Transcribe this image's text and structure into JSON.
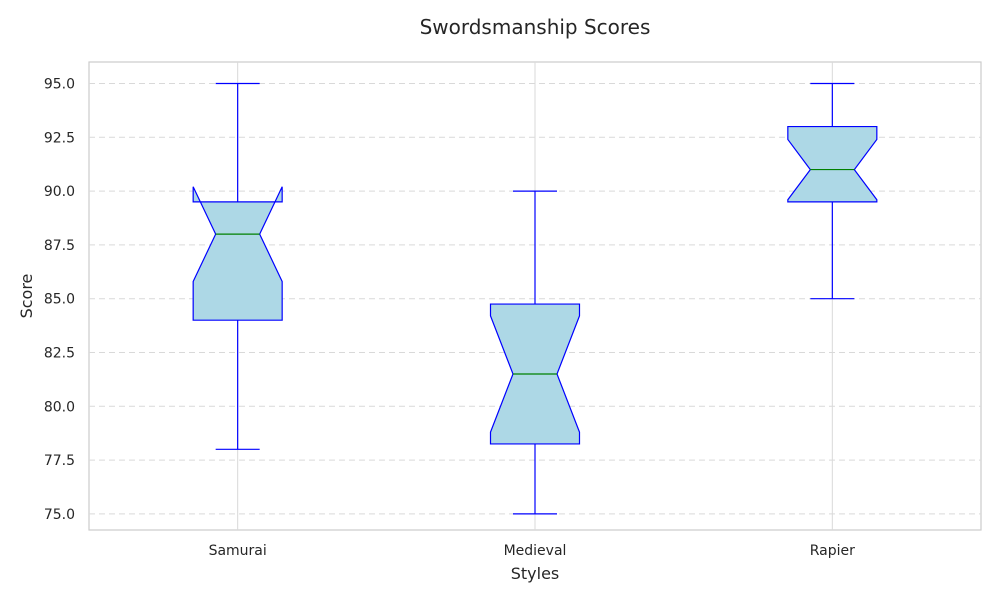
{
  "chart_data": {
    "type": "box",
    "title": "Swordsmanship Scores",
    "xlabel": "Styles",
    "ylabel": "Score",
    "ylim": [
      74.25,
      96.0
    ],
    "yticks": [
      "75.0",
      "77.5",
      "80.0",
      "82.5",
      "85.0",
      "87.5",
      "90.0",
      "92.5",
      "95.0"
    ],
    "grid": "y-dashed",
    "notched": true,
    "categories": [
      "Samurai",
      "Medieval",
      "Rapier"
    ],
    "boxes": [
      {
        "category": "Samurai",
        "whisker_low": 78.0,
        "q1": 84.0,
        "median": 88.0,
        "q3": 89.5,
        "whisker_high": 95.0,
        "notch_low": 85.8,
        "notch_high": 90.2
      },
      {
        "category": "Medieval",
        "whisker_low": 75.0,
        "q1": 78.25,
        "median": 81.5,
        "q3": 84.75,
        "whisker_high": 90.0,
        "notch_low": 78.8,
        "notch_high": 84.2
      },
      {
        "category": "Rapier",
        "whisker_low": 85.0,
        "q1": 89.5,
        "median": 91.0,
        "q3": 93.0,
        "whisker_high": 95.0,
        "notch_low": 89.6,
        "notch_high": 92.4
      }
    ],
    "colors": {
      "box_fill": "#add8e6",
      "box_edge": "#0000ff",
      "median": "#008000",
      "grid": "#d9d9d9",
      "axis": "#cccccc",
      "text": "#262626"
    }
  }
}
